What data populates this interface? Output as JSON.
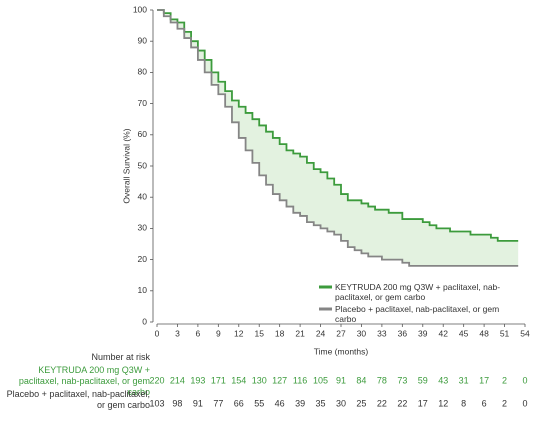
{
  "chart_data": {
    "type": "step",
    "ylabel": "Overall Survival (%)",
    "xlabel": "Time (months)",
    "xlim": [
      0,
      54
    ],
    "xticks": [
      0,
      3,
      6,
      9,
      12,
      15,
      18,
      21,
      24,
      27,
      30,
      33,
      36,
      39,
      42,
      45,
      48,
      51,
      54
    ],
    "ylim": [
      0,
      100
    ],
    "yticks": [
      0,
      10,
      20,
      30,
      40,
      50,
      60,
      70,
      80,
      90,
      100
    ],
    "x": [
      0,
      1,
      2,
      3,
      4,
      5,
      6,
      7,
      8,
      9,
      10,
      11,
      12,
      13,
      14,
      15,
      16,
      17,
      18,
      19,
      20,
      21,
      22,
      23,
      24,
      25,
      26,
      27,
      28,
      29,
      30,
      31,
      32,
      33,
      34,
      35,
      36,
      37,
      38,
      39,
      40,
      41,
      42,
      43,
      44,
      45,
      46,
      47,
      48,
      49,
      50,
      51,
      52,
      53
    ],
    "fill_between": "#e3f2e0",
    "series": [
      {
        "name": "KEYTRUDA 200 mg Q3W + paclitaxel, nab-paclitaxel, or gem carbo",
        "color": "#3c9b3c",
        "values": [
          100,
          99,
          97,
          96,
          93,
          90,
          87,
          84,
          80,
          77,
          74,
          71,
          69,
          67,
          65,
          63,
          61,
          59,
          57,
          55,
          54,
          53,
          51,
          49,
          48,
          46,
          44,
          41,
          39,
          39,
          38,
          37,
          36,
          36,
          35,
          35,
          33,
          33,
          33,
          32,
          31,
          30,
          30,
          29,
          29,
          29,
          28,
          28,
          28,
          27,
          26,
          26,
          26,
          26
        ]
      },
      {
        "name": "Placebo + paclitaxel, nab-paclitaxel, or gem carbo",
        "color": "#858585",
        "values": [
          100,
          98,
          96,
          94,
          91,
          88,
          84,
          80,
          76,
          73,
          69,
          64,
          59,
          55,
          51,
          47,
          44,
          41,
          39,
          37,
          35,
          34,
          32,
          31,
          30,
          29,
          28,
          26,
          24,
          23,
          22,
          21,
          21,
          20,
          20,
          20,
          19,
          18,
          18,
          18,
          18,
          18,
          18,
          18,
          18,
          18,
          18,
          18,
          18,
          18,
          18,
          18,
          18,
          18
        ]
      }
    ],
    "at_risk": {
      "title": "Number at risk",
      "rows": [
        {
          "label": "KEYTRUDA 200 mg Q3W + paclitaxel, nab-paclitaxel, or gem carbo",
          "color": "#3c9b3c",
          "values": [
            220,
            214,
            193,
            171,
            154,
            130,
            127,
            116,
            105,
            91,
            84,
            78,
            73,
            59,
            43,
            31,
            17,
            2,
            0
          ]
        },
        {
          "label": "Placebo + paclitaxel, nab-paclitaxel, or gem carbo",
          "color": "#333333",
          "values": [
            103,
            98,
            91,
            77,
            66,
            55,
            46,
            39,
            35,
            30,
            25,
            22,
            22,
            17,
            12,
            8,
            6,
            2,
            0
          ]
        }
      ]
    }
  }
}
